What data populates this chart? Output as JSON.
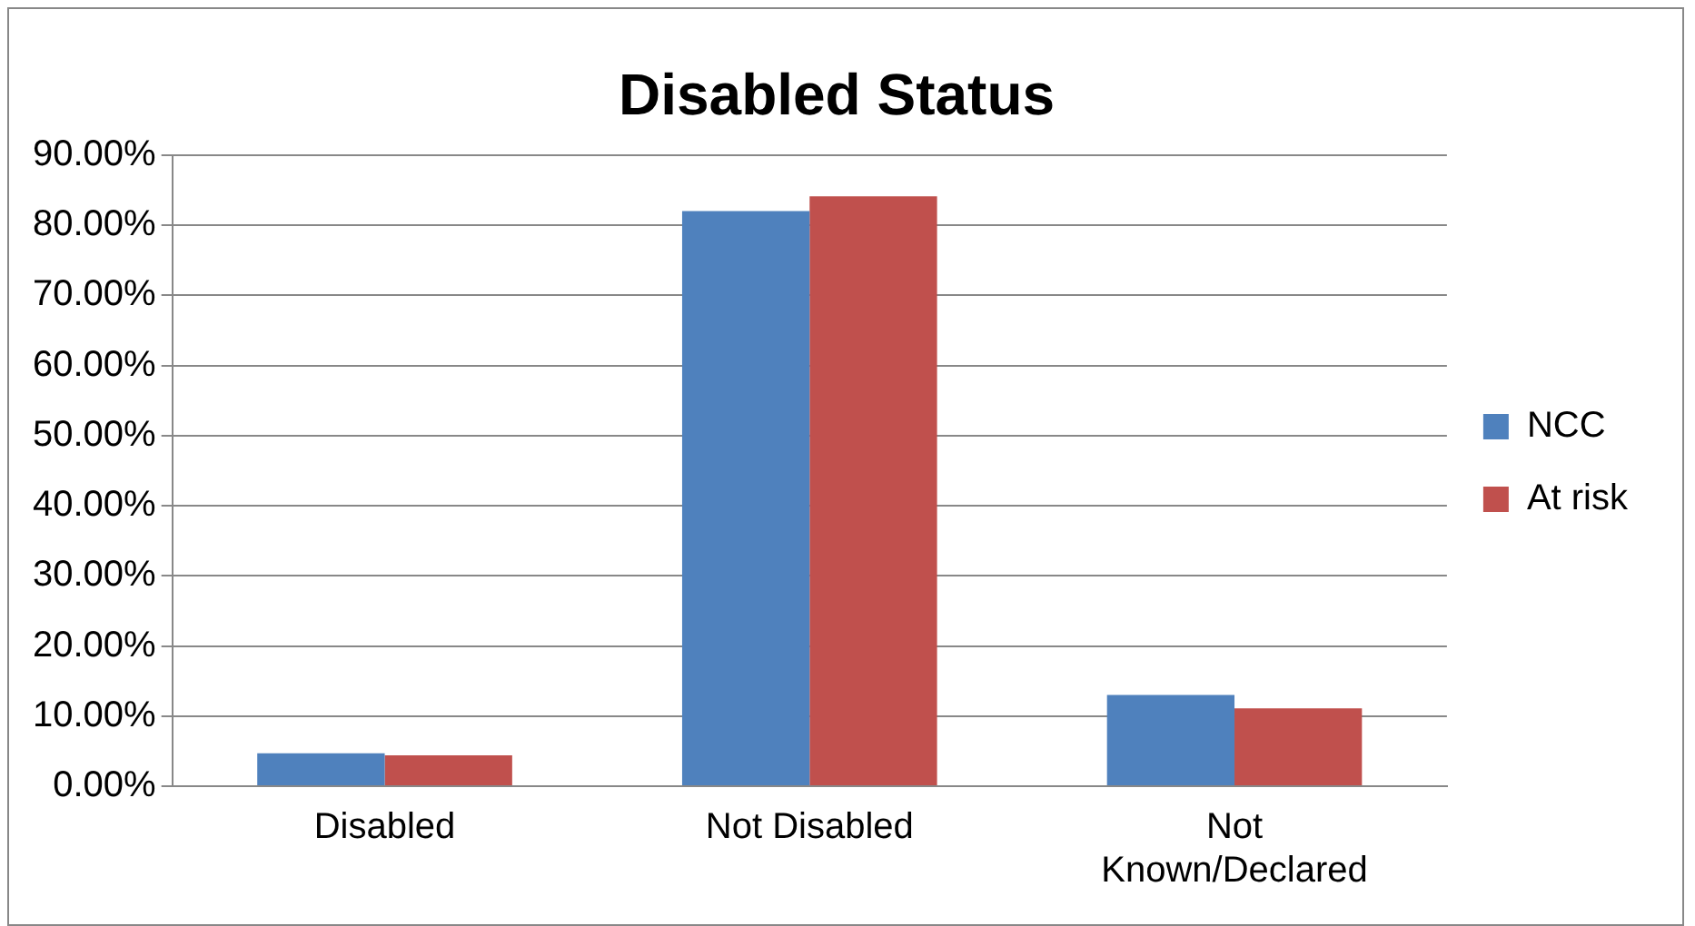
{
  "chart_data": {
    "type": "bar",
    "title": "Disabled Status",
    "categories": [
      "Disabled",
      "Not Disabled",
      "Not Known/Declared"
    ],
    "series": [
      {
        "name": "NCC",
        "color": "#4f81bd",
        "values": [
          4.7,
          82.0,
          13.0
        ]
      },
      {
        "name": "At risk",
        "color": "#c0504d",
        "values": [
          4.4,
          84.1,
          11.1
        ]
      }
    ],
    "ylim": [
      0,
      90
    ],
    "yticks": [
      {
        "value": 0,
        "label": "0.00%"
      },
      {
        "value": 10,
        "label": "10.00%"
      },
      {
        "value": 20,
        "label": "20.00%"
      },
      {
        "value": 30,
        "label": "30.00%"
      },
      {
        "value": 40,
        "label": "40.00%"
      },
      {
        "value": 50,
        "label": "50.00%"
      },
      {
        "value": 60,
        "label": "60.00%"
      },
      {
        "value": 70,
        "label": "70.00%"
      },
      {
        "value": 80,
        "label": "80.00%"
      },
      {
        "value": 90,
        "label": "90.00%"
      }
    ],
    "grid": "y",
    "legend": "right"
  }
}
